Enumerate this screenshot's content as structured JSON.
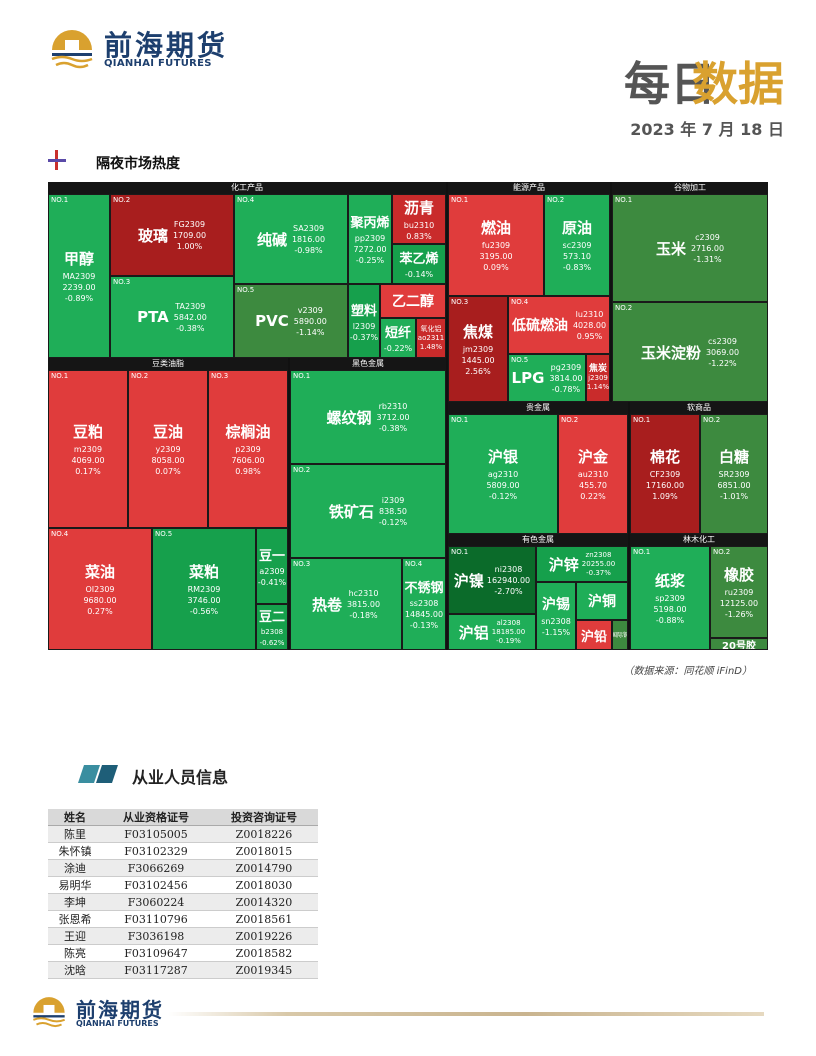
{
  "header": {
    "logo_cn": "前海期货",
    "logo_en": "QIANHAI FUTURES",
    "title_part1": "每日",
    "title_part2": "数据",
    "date": "2023 年 7 月 18 日",
    "section_title": "隔夜市场热度"
  },
  "treemap": {
    "groups": [
      "化工产品",
      "能源产品",
      "谷物加工",
      "豆类油脂",
      "黑色金属",
      "贵金属",
      "软商品",
      "有色金属",
      "林木化工"
    ],
    "tiles": {
      "jiachun": {
        "no": "NO.1",
        "name": "甲醇",
        "code": "MA2309",
        "price": "2239.00",
        "chg": "-0.89%"
      },
      "boli": {
        "no": "NO.2",
        "name": "玻璃",
        "code": "FG2309",
        "price": "1709.00",
        "chg": "1.00%"
      },
      "pta": {
        "no": "NO.3",
        "name": "PTA",
        "code": "TA2309",
        "price": "5842.00",
        "chg": "-0.38%"
      },
      "chunjian": {
        "no": "NO.4",
        "name": "纯碱",
        "code": "SA2309",
        "price": "1816.00",
        "chg": "-0.98%"
      },
      "pvc": {
        "no": "NO.5",
        "name": "PVC",
        "code": "v2309",
        "price": "5890.00",
        "chg": "-1.14%"
      },
      "jubingxi": {
        "name": "聚丙烯",
        "code": "pp2309",
        "price": "7272.00",
        "chg": "-0.25%"
      },
      "liqing": {
        "name": "沥青",
        "code": "bu2310",
        "chg": "0.83%"
      },
      "benyixi": {
        "name": "苯乙烯",
        "chg": "-0.14%"
      },
      "suliao": {
        "name": "塑料",
        "code": "l2309",
        "chg": "-0.37%"
      },
      "yierchun": {
        "name": "乙二醇"
      },
      "duanxian": {
        "name": "短纤",
        "chg": "-0.22%"
      },
      "yanghualv": {
        "name": "氧化铝",
        "code": "ao2311",
        "chg": "1.48%"
      },
      "ranyou": {
        "no": "NO.1",
        "name": "燃油",
        "code": "fu2309",
        "price": "3195.00",
        "chg": "0.09%"
      },
      "yuanyou": {
        "no": "NO.2",
        "name": "原油",
        "code": "sc2309",
        "price": "573.10",
        "chg": "-0.83%"
      },
      "jiaomei": {
        "no": "NO.3",
        "name": "焦煤",
        "code": "jm2309",
        "price": "1445.00",
        "chg": "2.56%"
      },
      "dilurany": {
        "no": "NO.4",
        "name": "低硫燃油",
        "code": "lu2310",
        "price": "4028.00",
        "chg": "0.95%"
      },
      "lpg": {
        "no": "NO.5",
        "name": "LPG",
        "code": "pg2309",
        "price": "3814.00",
        "chg": "-0.78%"
      },
      "jiaotan": {
        "name": "焦炭",
        "code": "j2309",
        "chg": "1.14%"
      },
      "yumi": {
        "no": "NO.1",
        "name": "玉米",
        "code": "c2309",
        "price": "2716.00",
        "chg": "-1.31%"
      },
      "yumidianfen": {
        "no": "NO.2",
        "name": "玉米淀粉",
        "code": "cs2309",
        "price": "3069.00",
        "chg": "-1.22%"
      },
      "doupo": {
        "no": "NO.1",
        "name": "豆粕",
        "code": "m2309",
        "price": "4069.00",
        "chg": "0.17%"
      },
      "douyou": {
        "no": "NO.2",
        "name": "豆油",
        "code": "y2309",
        "price": "8058.00",
        "chg": "0.07%"
      },
      "zonglvyou": {
        "no": "NO.3",
        "name": "棕榈油",
        "code": "p2309",
        "price": "7606.00",
        "chg": "0.98%"
      },
      "caiyou": {
        "no": "NO.4",
        "name": "菜油",
        "code": "OI2309",
        "price": "9680.00",
        "chg": "0.27%"
      },
      "caipo": {
        "no": "NO.5",
        "name": "菜粕",
        "code": "RM2309",
        "price": "3746.00",
        "chg": "-0.56%"
      },
      "douyi": {
        "name": "豆一",
        "code": "a2309",
        "chg": "-0.41%"
      },
      "douer": {
        "name": "豆二",
        "code": "b2308",
        "chg": "-0.62%"
      },
      "luowengang": {
        "no": "NO.1",
        "name": "螺纹钢",
        "code": "rb2310",
        "price": "3712.00",
        "chg": "-0.38%"
      },
      "tiekuangshi": {
        "no": "NO.2",
        "name": "铁矿石",
        "code": "i2309",
        "price": "838.50",
        "chg": "-0.12%"
      },
      "rejuan": {
        "no": "NO.3",
        "name": "热卷",
        "code": "hc2310",
        "price": "3815.00",
        "chg": "-0.18%"
      },
      "buxiugang": {
        "no": "NO.4",
        "name": "不锈钢",
        "code": "ss2308",
        "price": "14845.00",
        "chg": "-0.13%"
      },
      "huyin": {
        "no": "NO.1",
        "name": "沪银",
        "code": "ag2310",
        "price": "5809.00",
        "chg": "-0.12%"
      },
      "hujin": {
        "no": "NO.2",
        "name": "沪金",
        "code": "au2310",
        "price": "455.70",
        "chg": "0.22%"
      },
      "mianhua": {
        "no": "NO.1",
        "name": "棉花",
        "code": "CF2309",
        "price": "17160.00",
        "chg": "1.09%"
      },
      "baitang": {
        "no": "NO.2",
        "name": "白糖",
        "code": "SR2309",
        "price": "6851.00",
        "chg": "-1.01%"
      },
      "hunie": {
        "no": "NO.1",
        "name": "沪镍",
        "code": "ni2308",
        "price": "162940.00",
        "chg": "-2.70%"
      },
      "huxin": {
        "name": "沪锌",
        "code": "zn2308",
        "price": "20255.00",
        "chg": "-0.37%"
      },
      "hulv": {
        "name": "沪铝",
        "code": "al2308",
        "price": "18185.00",
        "chg": "-0.19%"
      },
      "huxi": {
        "name": "沪锡",
        "code": "sn2308",
        "chg": "-1.15%"
      },
      "hutong": {
        "name": "沪铜"
      },
      "huqian": {
        "name": "沪铅"
      },
      "guozhiyin": {
        "name": "国际铜"
      },
      "zhijiang": {
        "no": "NO.1",
        "name": "纸浆",
        "code": "sp2309",
        "price": "5198.00",
        "chg": "-0.88%"
      },
      "xiangjiao": {
        "no": "NO.2",
        "name": "橡胶",
        "code": "ru2309",
        "price": "12125.00",
        "chg": "-1.26%"
      },
      "ershihaojiao": {
        "name": "20号胶"
      }
    },
    "source": "（数据来源：同花顺 iFinD）"
  },
  "staff": {
    "title": "从业人员信息",
    "headers": [
      "姓名",
      "从业资格证号",
      "投资咨询证号"
    ],
    "rows": [
      [
        "陈里",
        "F03105005",
        "Z0018226"
      ],
      [
        "朱怀镇",
        "F03102329",
        "Z0018015"
      ],
      [
        "涂迪",
        "F3066269",
        "Z0014790"
      ],
      [
        "易明华",
        "F03102456",
        "Z0018030"
      ],
      [
        "李坤",
        "F3060224",
        "Z0014320"
      ],
      [
        "张恩希",
        "F03110796",
        "Z0018561"
      ],
      [
        "王迎",
        "F3036198",
        "Z0019226"
      ],
      [
        "陈亮",
        "F03109647",
        "Z0018582"
      ],
      [
        "沈晗",
        "F03117287",
        "Z0019345"
      ]
    ]
  },
  "footer": {
    "logo_cn": "前海期货",
    "logo_en": "QIANHAI FUTURES"
  },
  "colors": {
    "up_red": "#e03c3c",
    "down_green": "#1fae58",
    "brand_navy": "#1d3f6e",
    "brand_gold": "#d9a12f"
  }
}
